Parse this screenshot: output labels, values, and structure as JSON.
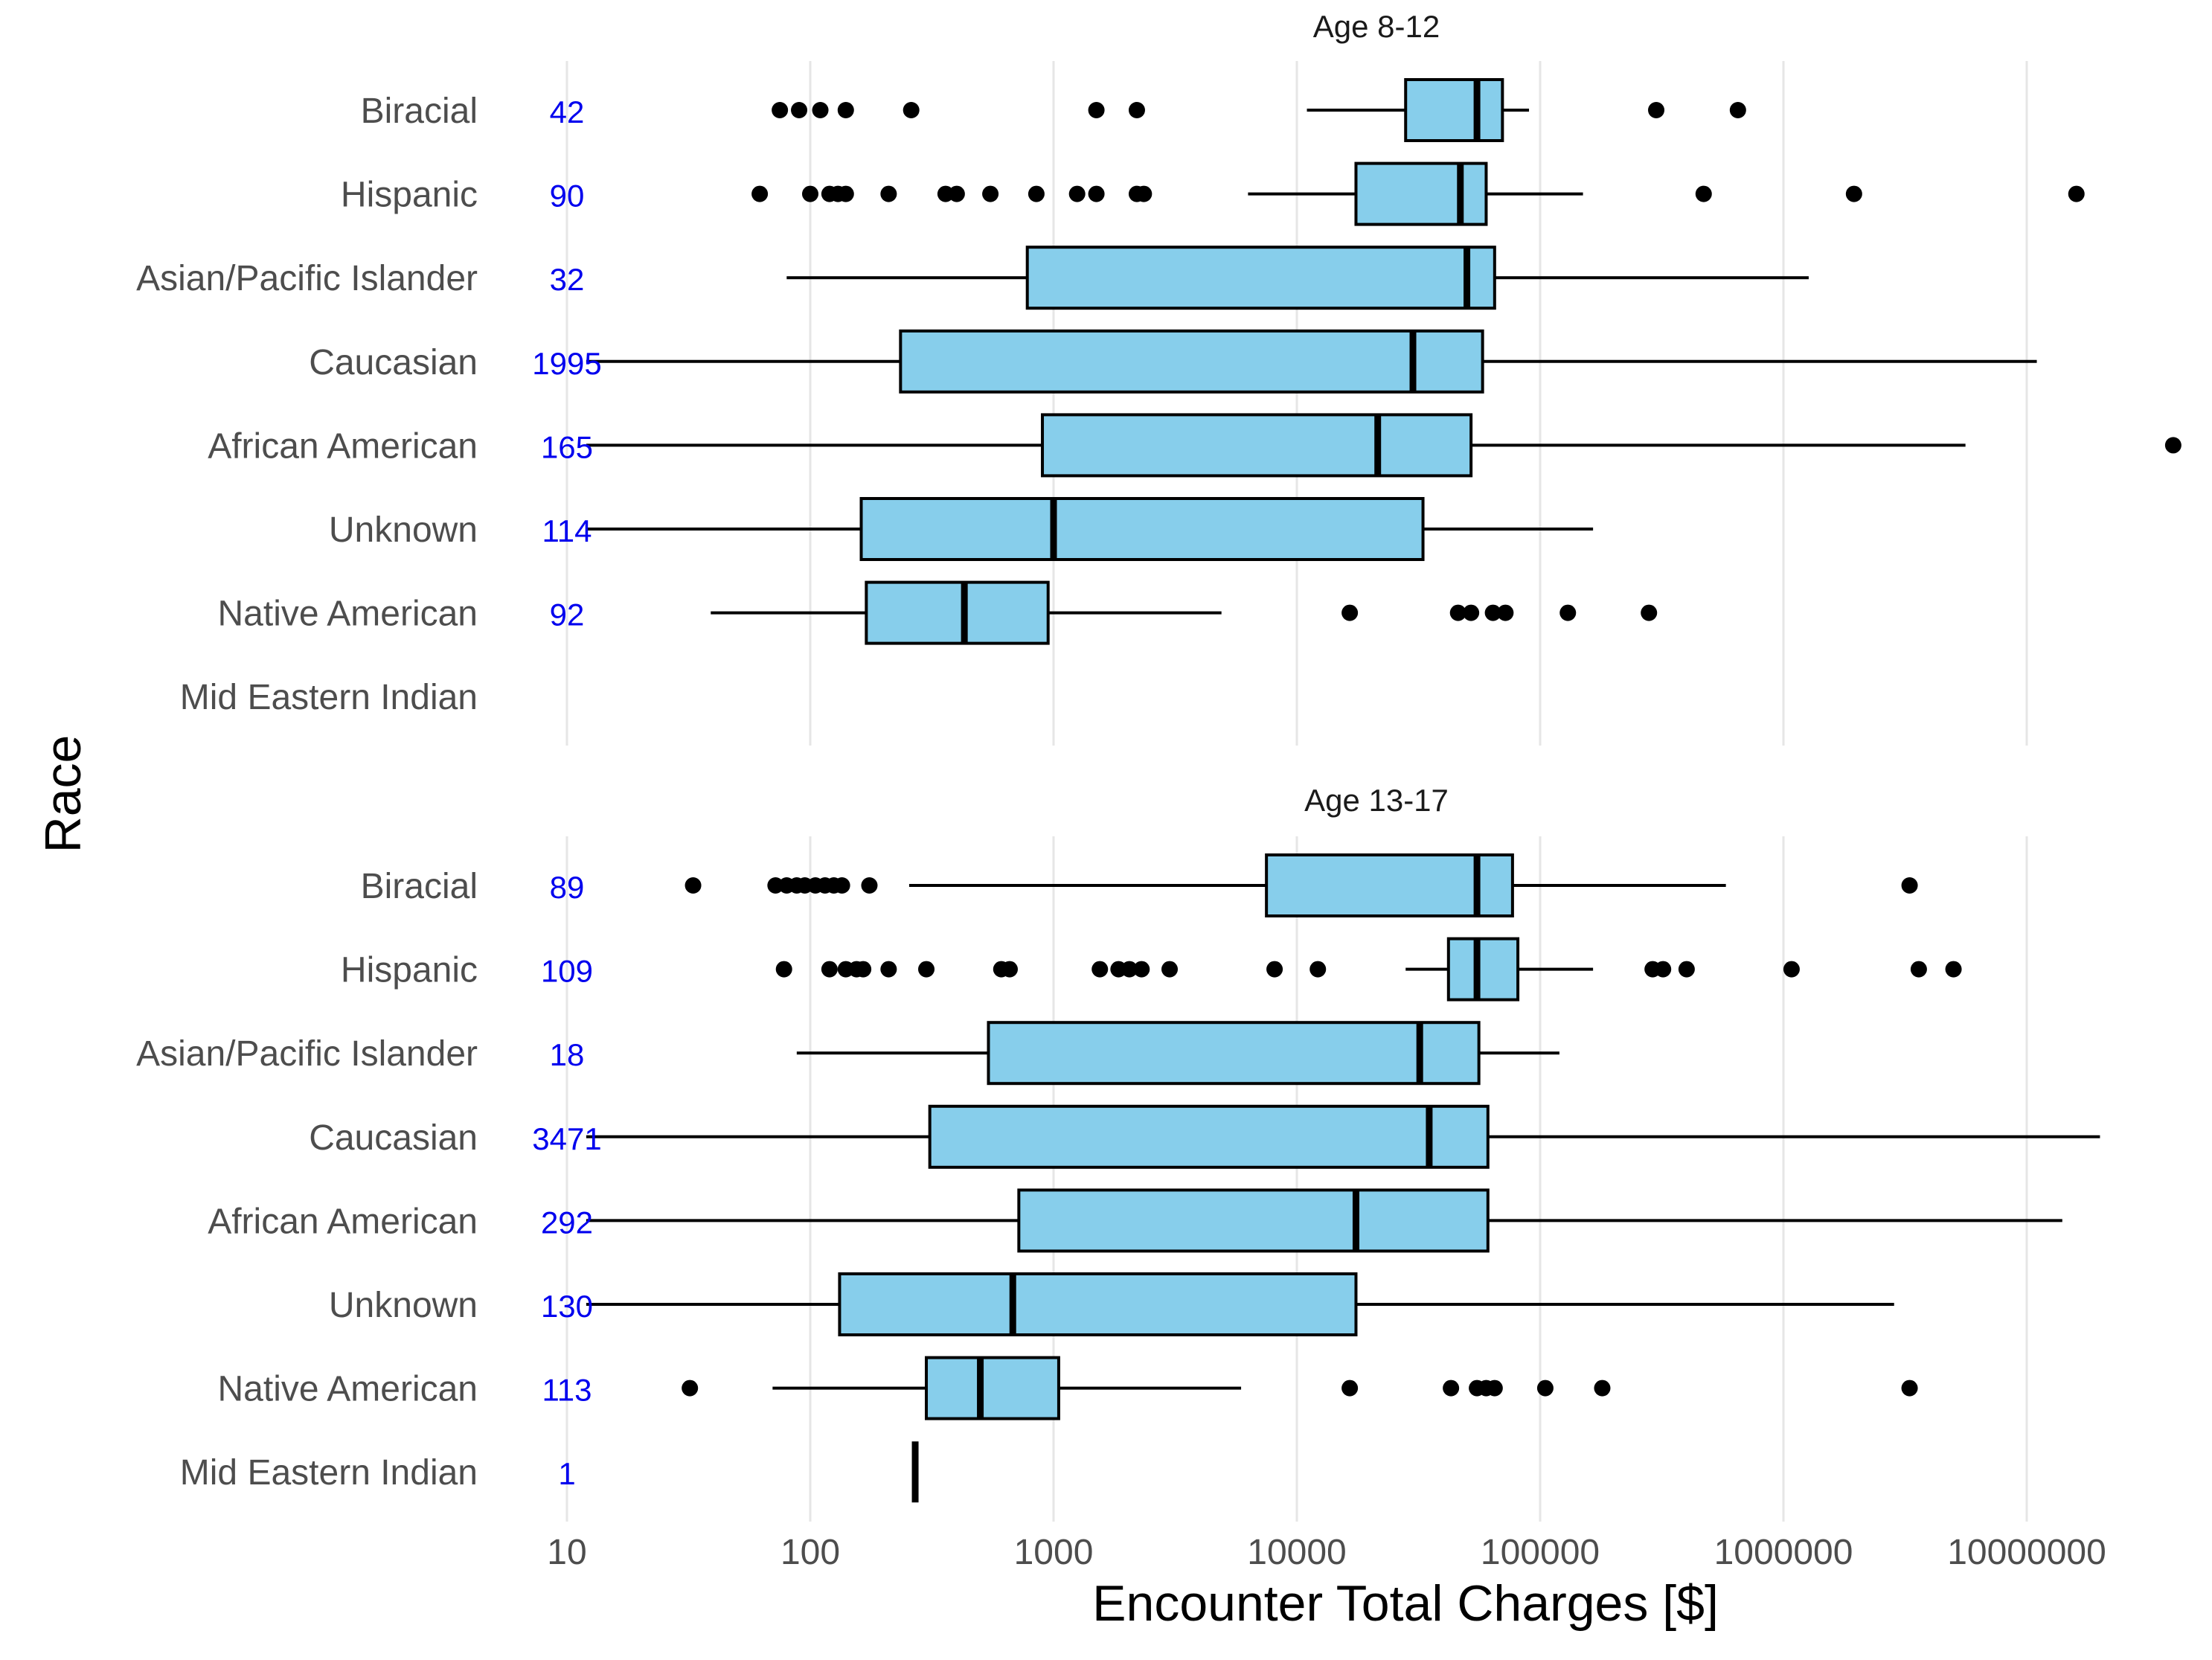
{
  "chart_data": {
    "type": "boxplot",
    "xlabel": "Encounter Total Charges [$]",
    "ylabel": "Race",
    "x_scale": "log10",
    "xlim": [
      10,
      20000000
    ],
    "x_ticks": [
      10,
      100,
      1000,
      10000,
      100000,
      1000000,
      10000000
    ],
    "x_tick_labels": [
      "10",
      "100",
      "1000",
      "10000",
      "100000",
      "1000000",
      "10000000"
    ],
    "grid": true,
    "colors": {
      "box_fill": "#87CEEB",
      "count_text": "#0000EE",
      "outline": "#000000",
      "grid": "#E6E6E6",
      "label_text": "#4D4D4D"
    },
    "panels": [
      {
        "title": "Age  8-12",
        "groups": [
          {
            "race": "Biracial",
            "n": "42",
            "min": 11000,
            "q1": 28000,
            "median": 55000,
            "q3": 70000,
            "max": 90000,
            "outliers": [
              75,
              90,
              110,
              140,
              260,
              1500,
              2200,
              300000,
              650000
            ]
          },
          {
            "race": "Hispanic",
            "n": "90",
            "min": 6300,
            "q1": 17500,
            "median": 47000,
            "q3": 60000,
            "max": 150000,
            "outliers": [
              62,
              100,
              120,
              130,
              140,
              210,
              360,
              400,
              550,
              850,
              1250,
              1500,
              2200,
              2350,
              470000,
              1950000,
              16000000
            ]
          },
          {
            "race": "Asian/Pacific Islander",
            "n": "32",
            "min": 80,
            "q1": 780,
            "median": 50000,
            "q3": 65000,
            "max": 1270000,
            "outliers": []
          },
          {
            "race": "Caucasian",
            "n": "1995",
            "min": 12,
            "q1": 235,
            "median": 30000,
            "q3": 58000,
            "max": 11000000,
            "outliers": []
          },
          {
            "race": "African American",
            "n": "165",
            "min": 12,
            "q1": 900,
            "median": 21500,
            "q3": 52000,
            "max": 5600000,
            "outliers": [
              40000000
            ]
          },
          {
            "race": "Unknown",
            "n": "114",
            "min": 12,
            "q1": 162,
            "median": 1000,
            "q3": 33000,
            "max": 165000,
            "outliers": []
          },
          {
            "race": "Native American",
            "n": "92",
            "min": 39,
            "q1": 170,
            "median": 430,
            "q3": 950,
            "max": 4900,
            "outliers": [
              16500,
              46000,
              52000,
              64000,
              72000,
              130000,
              280000
            ]
          },
          {
            "race": "Mid Eastern Indian",
            "n": "",
            "min": null,
            "q1": null,
            "median": null,
            "q3": null,
            "max": null,
            "outliers": []
          }
        ]
      },
      {
        "title": "Age 13-17",
        "groups": [
          {
            "race": "Biracial",
            "n": "89",
            "min": 255,
            "q1": 7500,
            "median": 55000,
            "q3": 77000,
            "max": 580000,
            "outliers": [
              33,
              72,
              80,
              88,
              95,
              105,
              115,
              125,
              135,
              175,
              3300000
            ]
          },
          {
            "race": "Hispanic",
            "n": "109",
            "min": 28000,
            "q1": 42000,
            "median": 55000,
            "q3": 81000,
            "max": 165000,
            "outliers": [
              78,
              120,
              140,
              155,
              165,
              210,
              300,
              610,
              660,
              1550,
              1850,
              2050,
              2300,
              3000,
              8100,
              12200,
              290000,
              320000,
              400000,
              1080000,
              3600000,
              5000000
            ]
          },
          {
            "race": "Asian/Pacific Islander",
            "n": "18",
            "min": 88,
            "q1": 540,
            "median": 32000,
            "q3": 56000,
            "max": 120000,
            "outliers": []
          },
          {
            "race": "Caucasian",
            "n": "3471",
            "min": 12,
            "q1": 310,
            "median": 35000,
            "q3": 61000,
            "max": 20000000,
            "outliers": []
          },
          {
            "race": "African American",
            "n": "292",
            "min": 12,
            "q1": 720,
            "median": 17500,
            "q3": 61000,
            "max": 14000000,
            "outliers": []
          },
          {
            "race": "Unknown",
            "n": "130",
            "min": 12,
            "q1": 132,
            "median": 680,
            "q3": 17500,
            "max": 2850000,
            "outliers": []
          },
          {
            "race": "Native American",
            "n": "113",
            "min": 70,
            "q1": 300,
            "median": 500,
            "q3": 1050,
            "max": 5900,
            "outliers": [
              32,
              16500,
              43000,
              55000,
              60000,
              65000,
              105000,
              180000,
              3300000
            ]
          },
          {
            "race": "Mid Eastern Indian",
            "n": "1",
            "min": 270,
            "q1": 270,
            "median": 270,
            "q3": 270,
            "max": 270,
            "outliers": []
          }
        ]
      }
    ]
  }
}
